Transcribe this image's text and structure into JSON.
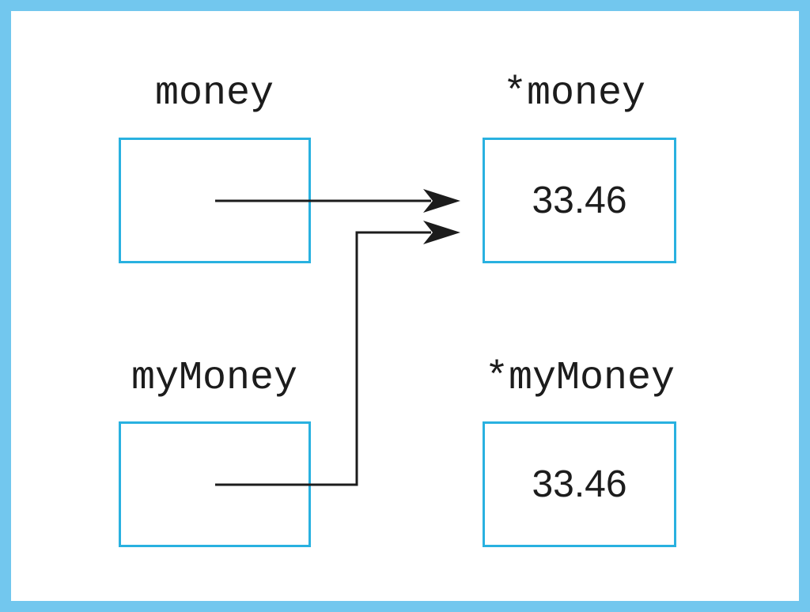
{
  "colors": {
    "frame": "#72c7ee",
    "box_border": "#29b1e0",
    "text": "#1c1c1c",
    "arrow": "#1c1c1c"
  },
  "variables": {
    "money": {
      "label": "money",
      "value": ""
    },
    "deref_money": {
      "label": "*money",
      "value": "33.46"
    },
    "myMoney": {
      "label": "myMoney",
      "value": ""
    },
    "deref_myMoney": {
      "label": "*myMoney",
      "value": "33.46"
    }
  },
  "arrows": [
    {
      "from": "money",
      "to": "deref_money"
    },
    {
      "from": "myMoney",
      "to": "deref_money"
    }
  ]
}
